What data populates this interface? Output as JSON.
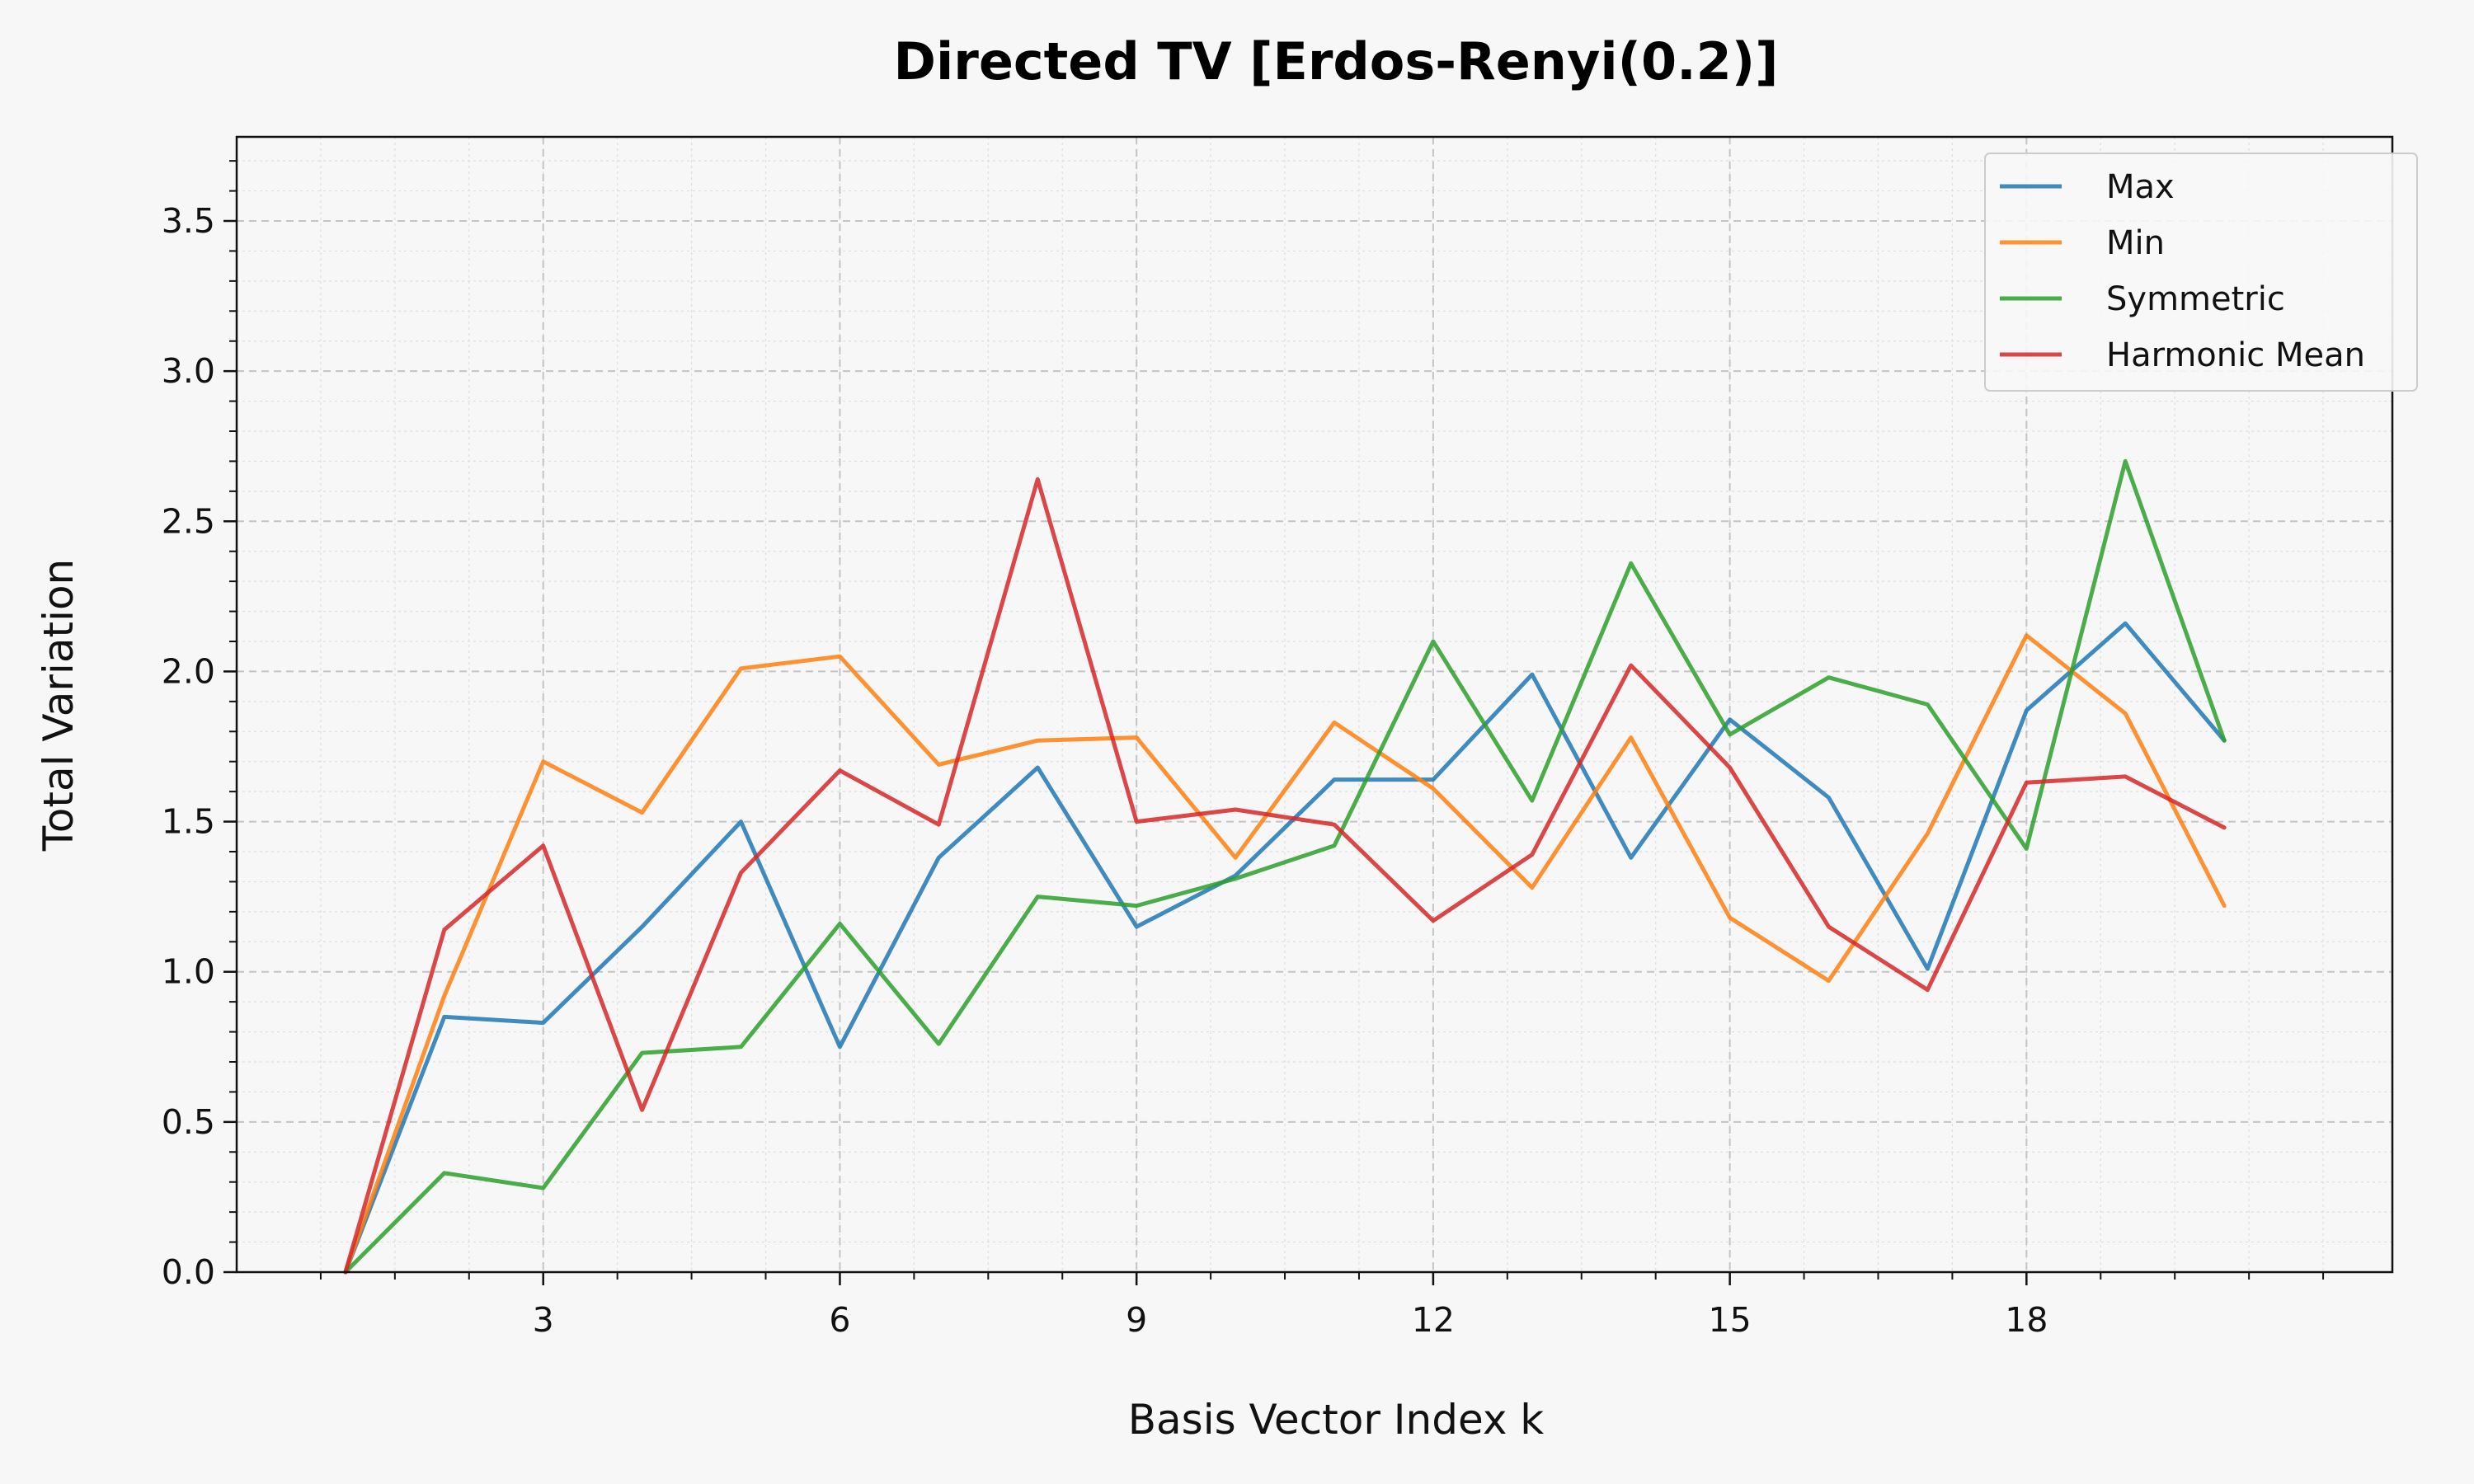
{
  "chart_data": {
    "type": "line",
    "title": "Directed TV [Erdos-Renyi(0.2)]",
    "xlabel": "Basis Vector Index k",
    "ylabel": "Total Variation",
    "xlim": [
      -0.1,
      21.7
    ],
    "ylim": [
      0,
      3.78
    ],
    "xticks": [
      3,
      6,
      9,
      12,
      15,
      18
    ],
    "xminor_ticks": [
      0.75,
      1.5,
      2.25,
      3,
      3.75,
      4.5,
      5.25,
      6,
      6.75,
      7.5,
      8.25,
      9,
      9.75,
      10.5,
      11.25,
      12,
      12.75,
      13.5,
      14.25,
      15,
      15.75,
      16.5,
      17.25,
      18,
      18.75,
      19.5,
      20.25,
      21
    ],
    "yticks": [
      0.0,
      0.5,
      1.0,
      1.5,
      2.0,
      2.5,
      3.0,
      3.5
    ],
    "ytick_labels": [
      "0.0",
      "0.5",
      "1.0",
      "1.5",
      "2.0",
      "2.5",
      "3.0",
      "3.5"
    ],
    "grid": true,
    "legend_position": "top-right",
    "x": [
      1,
      2,
      3,
      4,
      5,
      6,
      7,
      8,
      9,
      10,
      11,
      12,
      13,
      14,
      15,
      16,
      17,
      18,
      19,
      20
    ],
    "series": [
      {
        "name": "Max",
        "color": "#1f77b4",
        "values": [
          0.0,
          0.85,
          0.83,
          1.15,
          1.5,
          0.75,
          1.38,
          1.68,
          1.15,
          1.32,
          1.64,
          1.64,
          1.99,
          1.38,
          1.84,
          1.58,
          1.01,
          1.87,
          2.16,
          1.77
        ]
      },
      {
        "name": "Min",
        "color": "#ff7f0e",
        "values": [
          0.0,
          0.92,
          1.7,
          1.53,
          2.01,
          2.05,
          1.69,
          1.77,
          1.78,
          1.38,
          1.83,
          1.61,
          1.28,
          1.78,
          1.18,
          0.97,
          1.46,
          2.12,
          1.86,
          1.22
        ]
      },
      {
        "name": "Symmetric",
        "color": "#2ca02c",
        "values": [
          0.0,
          0.33,
          0.28,
          0.73,
          0.75,
          1.16,
          0.76,
          1.25,
          1.22,
          1.31,
          1.42,
          2.1,
          1.57,
          2.36,
          1.79,
          1.98,
          1.89,
          1.41,
          2.7,
          1.77
        ]
      },
      {
        "name": "Harmonic Mean",
        "color": "#d62728",
        "values": [
          0.0,
          1.14,
          1.42,
          0.54,
          1.33,
          1.67,
          1.49,
          2.64,
          1.5,
          1.54,
          1.49,
          1.17,
          1.39,
          2.02,
          1.68,
          1.15,
          0.94,
          1.63,
          1.65,
          1.48
        ]
      }
    ]
  }
}
